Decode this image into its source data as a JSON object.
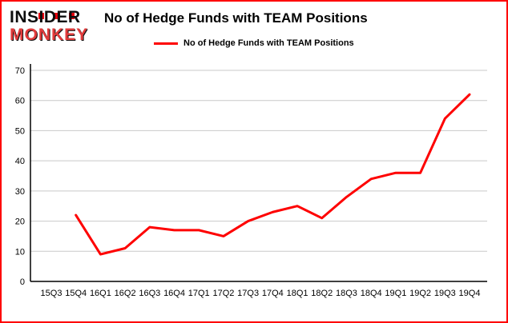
{
  "logo": {
    "line1": "INSIDER",
    "line2": "MONKEY"
  },
  "title": "No of Hedge Funds with TEAM Positions",
  "legend": {
    "label": "No of Hedge Funds with TEAM Positions"
  },
  "chart_data": {
    "type": "line",
    "title": "No of Hedge Funds with TEAM Positions",
    "categories": [
      "15Q3",
      "15Q4",
      "16Q1",
      "16Q2",
      "16Q3",
      "16Q4",
      "17Q1",
      "17Q2",
      "17Q3",
      "17Q4",
      "18Q1",
      "18Q2",
      "18Q3",
      "18Q4",
      "19Q1",
      "19Q2",
      "19Q3",
      "19Q4"
    ],
    "series": [
      {
        "name": "No of Hedge Funds with TEAM Positions",
        "values": [
          null,
          22,
          9,
          11,
          18,
          17,
          17,
          15,
          20,
          23,
          25,
          21,
          28,
          34,
          36,
          36,
          54,
          62
        ]
      }
    ],
    "ylim": [
      0,
      70
    ],
    "yticks": [
      0,
      10,
      20,
      30,
      40,
      50,
      60,
      70
    ],
    "line_color": "#fe0000",
    "grid_color": "#c9c9c9",
    "axis_color": "#000000",
    "legend_position": "top",
    "grid": true
  }
}
